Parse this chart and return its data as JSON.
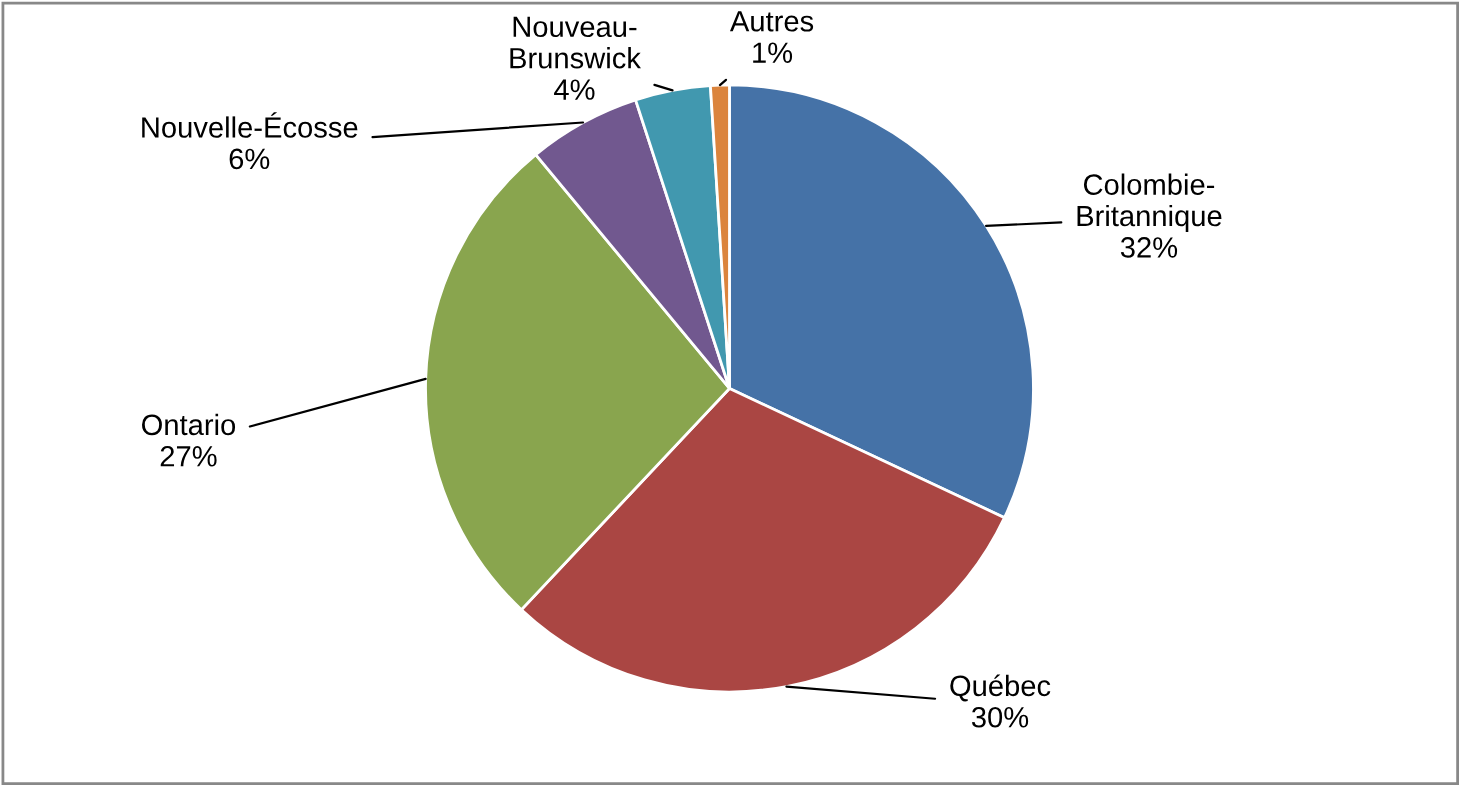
{
  "chart_data": {
    "type": "pie",
    "categories": [
      "Colombie-Britannique",
      "Québec",
      "Ontario",
      "Nouvelle-Écosse",
      "Nouveau-Brunswick",
      "Autres"
    ],
    "values": [
      32,
      30,
      27,
      6,
      4,
      1
    ],
    "value_labels": [
      "32%",
      "30%",
      "27%",
      "6%",
      "4%",
      "1%"
    ],
    "colors": [
      "#4572a7",
      "#aa4643",
      "#89a54e",
      "#71588f",
      "#4198af",
      "#db843d"
    ],
    "legend": false
  }
}
